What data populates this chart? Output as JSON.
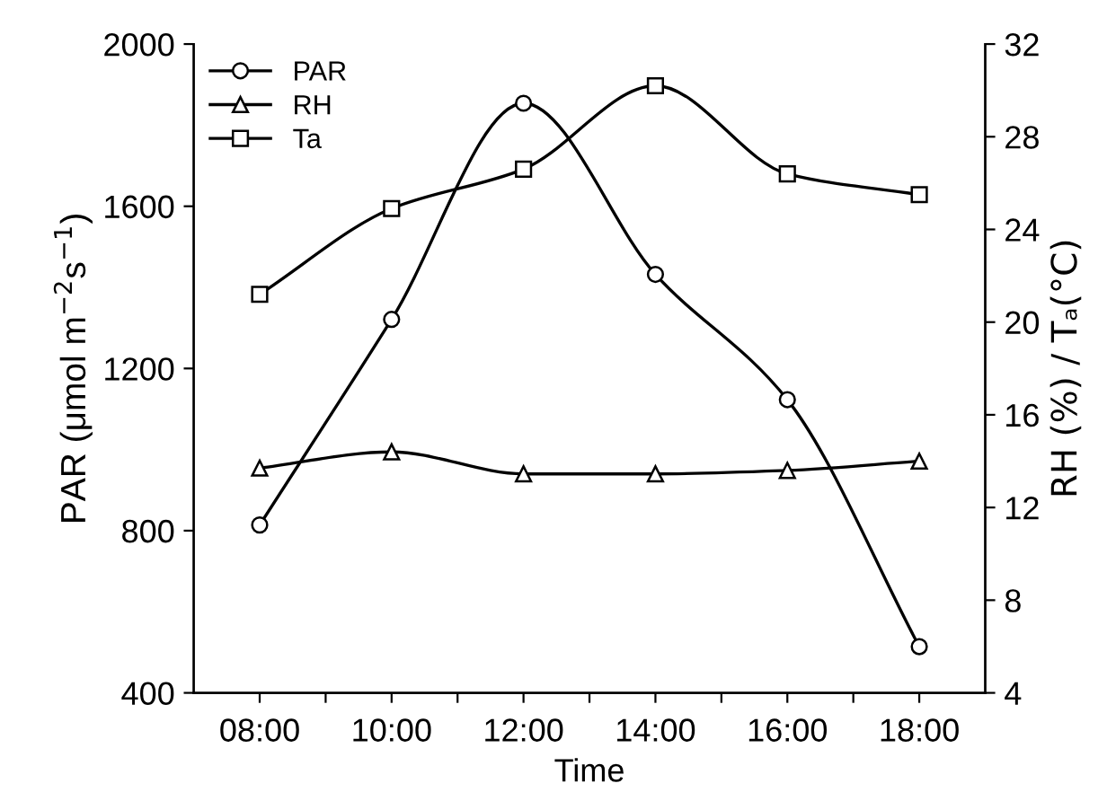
{
  "chart_data": {
    "type": "line",
    "xlabel": "Time",
    "ylabel": "PAR (μmol m$^{−2}$s$^{−1}$)",
    "y2label": "RH (%) / Tₐ(°C)",
    "x": [
      8,
      10,
      12,
      14,
      16,
      18
    ],
    "xlim": [
      7,
      19
    ],
    "xticks": [
      {
        "value": 8,
        "label": "08:00"
      },
      {
        "value": 9,
        "label": null
      },
      {
        "value": 10,
        "label": "10:00"
      },
      {
        "value": 11,
        "label": null
      },
      {
        "value": 12,
        "label": "12:00"
      },
      {
        "value": 13,
        "label": null
      },
      {
        "value": 14,
        "label": "14:00"
      },
      {
        "value": 15,
        "label": null
      },
      {
        "value": 16,
        "label": "16:00"
      },
      {
        "value": 17,
        "label": null
      },
      {
        "value": 18,
        "label": "18:00"
      }
    ],
    "ylim": [
      400,
      2000
    ],
    "yticks": [
      400,
      800,
      1200,
      1600,
      2000
    ],
    "y2lim": [
      4,
      32
    ],
    "y2ticks": [
      4,
      8,
      12,
      16,
      20,
      24,
      28,
      32
    ],
    "legend": "top left",
    "grid": false,
    "line_style": "solid",
    "series": [
      {
        "name": "PAR",
        "color": "#000000",
        "marker": "circle",
        "values": [
          814,
          1321,
          1854,
          1432,
          1123,
          514
        ]
      },
      {
        "name": "RH",
        "color": "#000000",
        "marker": "triangle",
        "axis": "y2",
        "values": [
          13.7,
          14.4,
          13.45,
          13.45,
          13.6,
          14.0
        ]
      },
      {
        "name": "Ta",
        "color": "#000000",
        "marker": "square",
        "axis": "y2",
        "values": [
          21.2,
          24.9,
          26.6,
          30.2,
          26.4,
          25.5
        ]
      }
    ]
  }
}
